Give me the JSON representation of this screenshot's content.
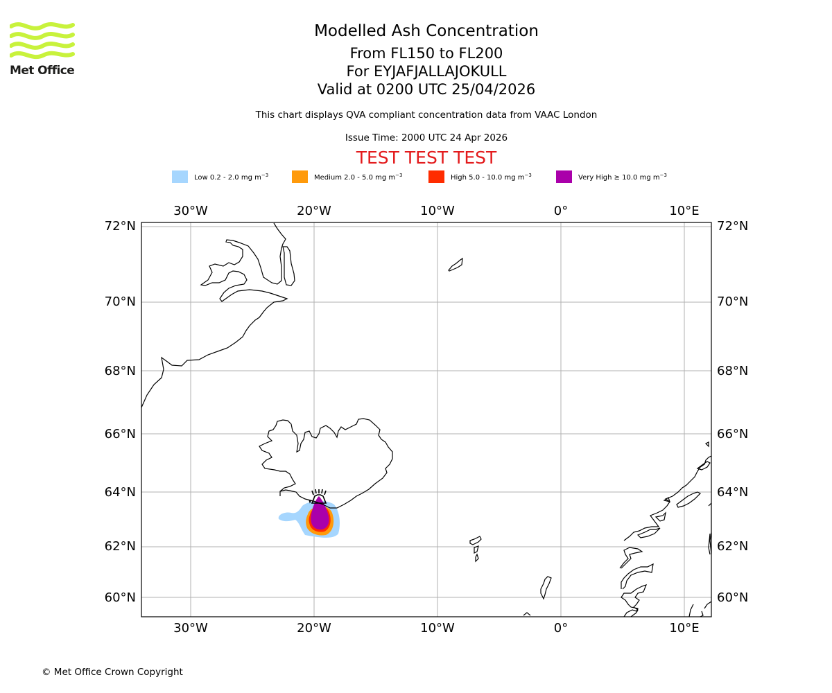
{
  "header": {
    "logo_text": "Met Office",
    "title": "Modelled Ash Concentration",
    "level_range": "From FL150 to FL200",
    "volcano": "For EYJAFJALLAJOKULL",
    "valid_time": "Valid at 0200 UTC 25/04/2026",
    "description": "This chart displays QVA compliant concentration data from VAAC London",
    "issue_time": "Issue Time: 2000 UTC 24 Apr 2026",
    "test_banner": "TEST TEST TEST"
  },
  "legend": [
    {
      "label": "Low 0.2 - 2.0 mg m",
      "exp": "−3",
      "color": "#a6d6fe"
    },
    {
      "label": "Medium 2.0 - 5.0 mg m",
      "exp": "−3",
      "color": "#ff9a0b"
    },
    {
      "label": "High 5.0 - 10.0 mg m",
      "exp": "−3",
      "color": "#ff2c00"
    },
    {
      "label": "Very High  ≥  10.0 mg m",
      "exp": "−3",
      "color": "#aa00aa"
    }
  ],
  "map": {
    "longitude_ticks": [
      "30°W",
      "20°W",
      "10°W",
      "0°",
      "10°E"
    ],
    "latitude_ticks": [
      "72°N",
      "70°N",
      "68°N",
      "66°N",
      "64°N",
      "62°N",
      "60°N"
    ],
    "volcano_marker": "volcano-summit"
  },
  "footer": {
    "copyright": "© Met Office Crown Copyright"
  }
}
